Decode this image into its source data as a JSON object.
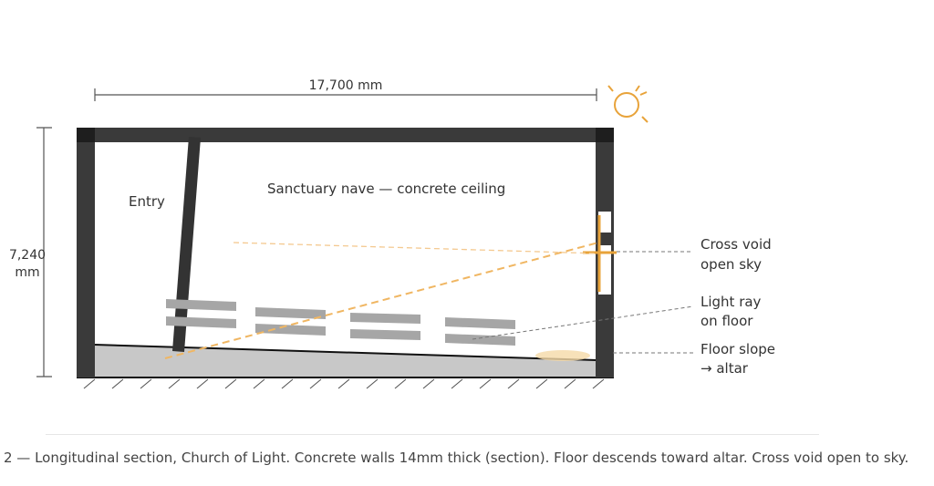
{
  "dimensions": {
    "width_label": "17,700 mm",
    "height_label_line1": "7,240",
    "height_label_line2": "mm"
  },
  "labels": {
    "entry": "Entry",
    "nave": "Sanctuary nave — concrete ceiling"
  },
  "callouts": {
    "cross_void_line1": "Cross void",
    "cross_void_line2": "open sky",
    "light_ray_line1": "Light ray",
    "light_ray_line2": "on floor",
    "floor_slope_line1": "Floor slope",
    "floor_slope_line2": "→ altar"
  },
  "caption": "2 — Longitudinal section, Church of Light. Concrete walls 14mm thick (section). Floor descends toward altar. Cross void open to sky.",
  "colors": {
    "concrete": "#3a3a3a",
    "light": "#e8a33a",
    "floor": "#c8c8c8",
    "pews": "#a6a6a6"
  }
}
